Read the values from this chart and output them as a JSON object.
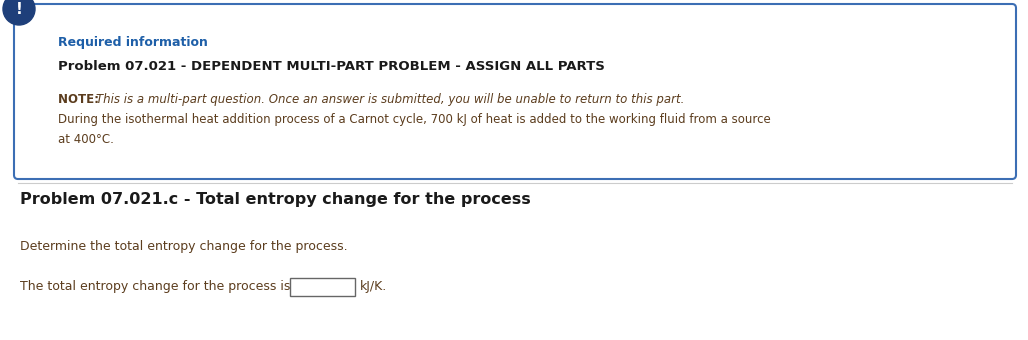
{
  "box_title": "Required information",
  "box_heading": "Problem 07.021 - DEPENDENT MULTI-PART PROBLEM - ASSIGN ALL PARTS",
  "box_note_label": "NOTE: ",
  "box_note_italic": "This is a multi-part question. Once an answer is submitted, you will be unable to return to this part.",
  "box_body_line1": "During the isothermal heat addition process of a Carnot cycle, 700 kJ of heat is added to the working fluid from a source",
  "box_body_line2": "at 400°C.",
  "section_heading": "Problem 07.021.c - Total entropy change for the process",
  "instruction": "Determine the total entropy change for the process.",
  "answer_prefix": "The total entropy change for the process is",
  "answer_suffix": "kJ/K.",
  "bg_color": "#ffffff",
  "box_border_color": "#3c6eb4",
  "box_bg_color": "#ffffff",
  "icon_bg_color": "#1e3f7a",
  "text_color_blue": "#1e5fa8",
  "text_color_brown": "#5c3d1e",
  "heading_color": "#1a1a1a",
  "section_heading_color": "#1a1a1a",
  "note_label_color": "#5c3d1e",
  "line_color": "#cccccc"
}
